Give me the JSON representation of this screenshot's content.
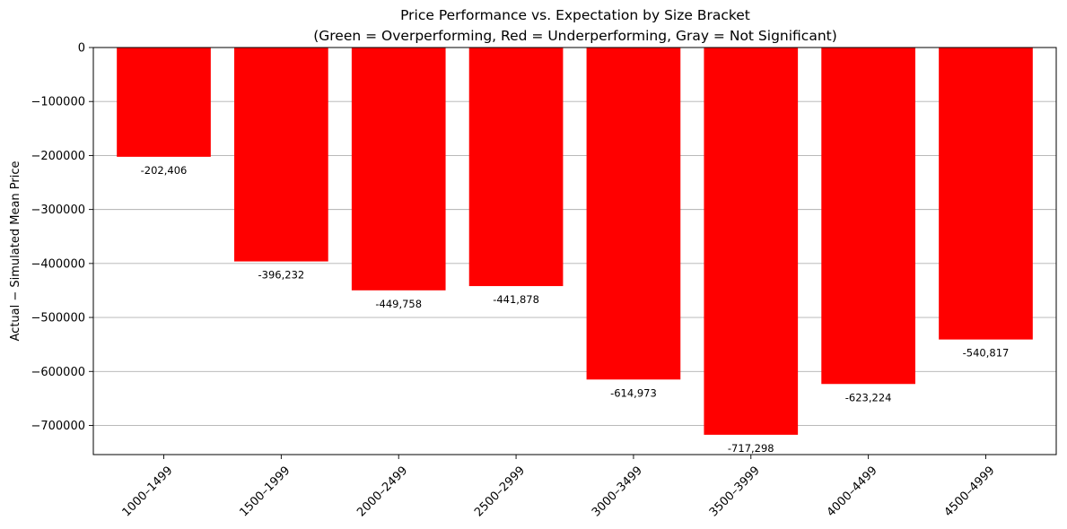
{
  "chart_data": {
    "type": "bar",
    "title": "Price Performance vs. Expectation by Size Bracket",
    "subtitle": "(Green = Overperforming, Red = Underperforming, Gray = Not Significant)",
    "xlabel": "",
    "ylabel": "Actual − Simulated Mean Price",
    "categories": [
      "1000–1499",
      "1500–1999",
      "2000–2499",
      "2500–2999",
      "3000–3499",
      "3500–3999",
      "4000–4499",
      "4500–4999"
    ],
    "values": [
      -202406,
      -396232,
      -449758,
      -441878,
      -614973,
      -717298,
      -623224,
      -540817
    ],
    "value_labels": [
      "-202,406",
      "-396,232",
      "-449,758",
      "-441,878",
      "-614,973",
      "-717,298",
      "-623,224",
      "-540,817"
    ],
    "bar_color": "#ff0000",
    "ylim": [
      -754000,
      0
    ],
    "yticks": [
      0,
      -100000,
      -200000,
      -300000,
      -400000,
      -500000,
      -600000,
      -700000
    ],
    "ytick_labels": [
      "0",
      "−100000",
      "−200000",
      "−300000",
      "−400000",
      "−500000",
      "−600000",
      "−700000"
    ],
    "grid": "y",
    "legend": "none"
  }
}
